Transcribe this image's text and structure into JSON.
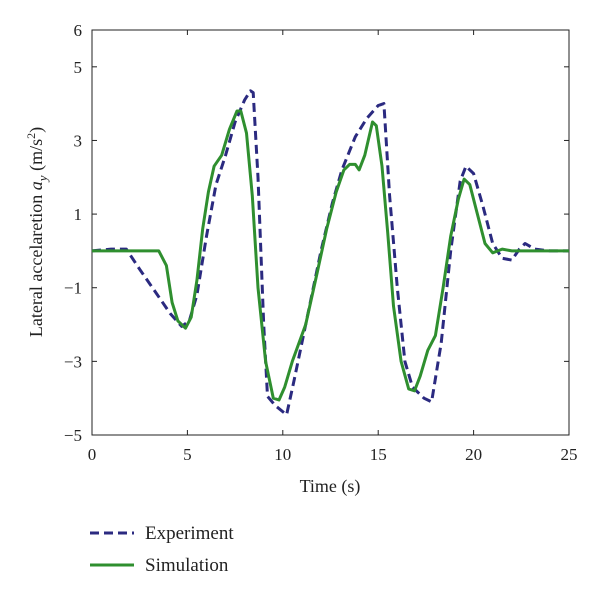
{
  "chart_data": {
    "type": "line",
    "xlabel": "Time (s)",
    "ylabel": {
      "prefix": "Lateral accelaretion ",
      "symbol": "a",
      "subscript": "y",
      "units_open": " (m/s",
      "units_sup": "2",
      "units_close": ")"
    },
    "xlim": [
      0,
      25
    ],
    "ylim": [
      -5,
      6
    ],
    "xticks": [
      0,
      5,
      10,
      15,
      20,
      25
    ],
    "xtick_labels": [
      "0",
      "5",
      "10",
      "15",
      "20",
      "25"
    ],
    "yticks": [
      -5,
      -3,
      -1,
      1,
      3,
      5,
      6
    ],
    "ytick_labels": [
      "−5",
      "−3",
      "−1",
      "1",
      "3",
      "5",
      "6"
    ],
    "grid": false,
    "legend_position": "bottom-left-outside",
    "series": [
      {
        "name": "Experiment",
        "color": "#2b2a80",
        "style": "dashed",
        "points": [
          [
            0,
            0
          ],
          [
            1,
            0.05
          ],
          [
            1.8,
            0.05
          ],
          [
            2.5,
            -0.5
          ],
          [
            3.3,
            -1.1
          ],
          [
            4.1,
            -1.7
          ],
          [
            4.7,
            -2.05
          ],
          [
            5.1,
            -1.9
          ],
          [
            5.5,
            -1.2
          ],
          [
            6.0,
            0.4
          ],
          [
            6.5,
            1.8
          ],
          [
            7.0,
            2.6
          ],
          [
            7.5,
            3.5
          ],
          [
            8.0,
            4.1
          ],
          [
            8.3,
            4.35
          ],
          [
            8.45,
            4.3
          ],
          [
            8.7,
            2.0
          ],
          [
            9.0,
            -2.0
          ],
          [
            9.2,
            -3.95
          ],
          [
            9.6,
            -4.2
          ],
          [
            10.2,
            -4.45
          ],
          [
            10.6,
            -3.5
          ],
          [
            11.2,
            -2.0
          ],
          [
            12.0,
            0.0
          ],
          [
            12.6,
            1.3
          ],
          [
            13.1,
            2.2
          ],
          [
            13.8,
            3.1
          ],
          [
            14.4,
            3.6
          ],
          [
            15.0,
            3.95
          ],
          [
            15.3,
            4.0
          ],
          [
            15.6,
            1.5
          ],
          [
            16.0,
            -1.0
          ],
          [
            16.4,
            -3.0
          ],
          [
            16.8,
            -3.7
          ],
          [
            17.4,
            -4.0
          ],
          [
            17.8,
            -4.1
          ],
          [
            18.3,
            -2.5
          ],
          [
            18.8,
            0.0
          ],
          [
            19.3,
            1.9
          ],
          [
            19.6,
            2.3
          ],
          [
            20.0,
            2.1
          ],
          [
            20.5,
            1.2
          ],
          [
            21.0,
            0.2
          ],
          [
            21.5,
            -0.2
          ],
          [
            22.0,
            -0.25
          ],
          [
            22.4,
            0.05
          ],
          [
            22.7,
            0.2
          ],
          [
            23.2,
            0.05
          ],
          [
            24.0,
            0.0
          ],
          [
            25,
            0
          ]
        ]
      },
      {
        "name": "Simulation",
        "color": "#2f8f2f",
        "style": "solid",
        "points": [
          [
            0,
            0
          ],
          [
            3.5,
            0
          ],
          [
            3.9,
            -0.4
          ],
          [
            4.2,
            -1.4
          ],
          [
            4.5,
            -1.9
          ],
          [
            4.9,
            -2.1
          ],
          [
            5.2,
            -1.8
          ],
          [
            5.5,
            -0.8
          ],
          [
            5.8,
            0.6
          ],
          [
            6.1,
            1.6
          ],
          [
            6.4,
            2.3
          ],
          [
            6.8,
            2.6
          ],
          [
            7.2,
            3.3
          ],
          [
            7.6,
            3.8
          ],
          [
            7.8,
            3.8
          ],
          [
            8.1,
            3.2
          ],
          [
            8.4,
            1.5
          ],
          [
            8.7,
            -1.0
          ],
          [
            9.1,
            -3.0
          ],
          [
            9.5,
            -4.0
          ],
          [
            9.8,
            -4.05
          ],
          [
            10.1,
            -3.7
          ],
          [
            10.5,
            -3.0
          ],
          [
            11.2,
            -2.0
          ],
          [
            11.8,
            -0.6
          ],
          [
            12.3,
            0.6
          ],
          [
            12.8,
            1.6
          ],
          [
            13.2,
            2.2
          ],
          [
            13.5,
            2.35
          ],
          [
            13.8,
            2.35
          ],
          [
            14.0,
            2.2
          ],
          [
            14.3,
            2.6
          ],
          [
            14.7,
            3.5
          ],
          [
            14.9,
            3.4
          ],
          [
            15.2,
            2.3
          ],
          [
            15.5,
            0.5
          ],
          [
            15.8,
            -1.5
          ],
          [
            16.2,
            -3.0
          ],
          [
            16.6,
            -3.75
          ],
          [
            16.9,
            -3.8
          ],
          [
            17.2,
            -3.4
          ],
          [
            17.6,
            -2.7
          ],
          [
            18.0,
            -2.3
          ],
          [
            18.4,
            -1.0
          ],
          [
            18.8,
            0.4
          ],
          [
            19.2,
            1.4
          ],
          [
            19.5,
            1.95
          ],
          [
            19.8,
            1.8
          ],
          [
            20.2,
            1.0
          ],
          [
            20.6,
            0.2
          ],
          [
            21.0,
            -0.05
          ],
          [
            21.5,
            0.05
          ],
          [
            22.0,
            0.0
          ],
          [
            25,
            0
          ]
        ]
      }
    ]
  }
}
